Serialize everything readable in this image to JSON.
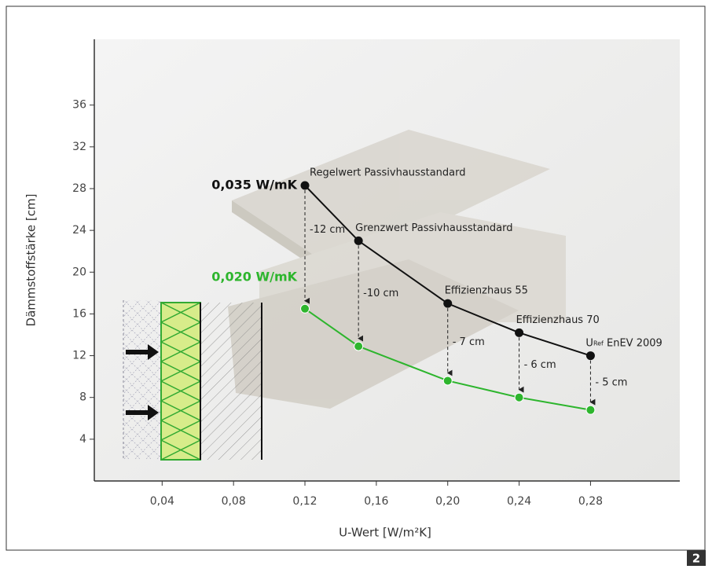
{
  "chart_data": {
    "type": "line",
    "x": [
      0.12,
      0.15,
      0.2,
      0.24,
      0.28
    ],
    "series": [
      {
        "name": "0,035 W/mK",
        "color": "#111111",
        "values": [
          28.3,
          23,
          17,
          14.2,
          12
        ]
      },
      {
        "name": "0,020 W/mK",
        "color": "#2db52d",
        "values": [
          16.5,
          12.9,
          9.6,
          8,
          6.8
        ]
      }
    ],
    "point_labels": [
      "Regelwert Passivhausstandard",
      "Grenzwert Passivhausstandard",
      "Effizienzhaus 55",
      "Effizienzhaus 70",
      null
    ],
    "u_ref_label": {
      "main": "U",
      "sub": "Ref",
      "rest": " EnEV 2009"
    },
    "difference_labels": [
      "-12 cm",
      "-10 cm",
      "- 7 cm",
      "- 6 cm",
      "- 5 cm"
    ],
    "x_label": "U-Wert [W/m²K]",
    "y_label": "Dämmstoffstärke [cm]",
    "xlim": [
      0.002,
      0.33
    ],
    "ylim": [
      0,
      42.3
    ],
    "xticks": [
      {
        "value": 0.04,
        "label": "0,04"
      },
      {
        "value": 0.08,
        "label": "0,08"
      },
      {
        "value": 0.12,
        "label": "0,12"
      },
      {
        "value": 0.16,
        "label": "0,16"
      },
      {
        "value": 0.2,
        "label": "0,20"
      },
      {
        "value": 0.24,
        "label": "0,24"
      },
      {
        "value": 0.28,
        "label": "0,28"
      }
    ],
    "yticks": [
      4,
      8,
      12,
      16,
      20,
      24,
      28,
      32,
      36
    ],
    "figure_number": "2"
  }
}
